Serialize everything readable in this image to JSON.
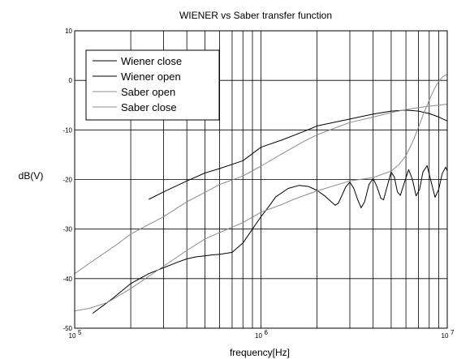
{
  "chart_data": {
    "type": "line",
    "title": "WIENER vs Saber transfer function",
    "xlabel": "frequency[Hz]",
    "ylabel": "dB(V)",
    "xscale": "log",
    "xlim": [
      100000,
      10000000
    ],
    "ylim": [
      -50,
      10
    ],
    "x_ticks": [
      {
        "value": 100000,
        "base": "10",
        "exp": "5"
      },
      {
        "value": 1000000,
        "base": "10",
        "exp": "6"
      },
      {
        "value": 10000000,
        "base": "10",
        "exp": "7"
      }
    ],
    "y_ticks": [
      10,
      0,
      -10,
      -20,
      -30,
      -40,
      -50
    ],
    "grid": true,
    "legend_position": "top-left",
    "series": [
      {
        "name": "Wiener close",
        "color": "#000000",
        "points": [
          [
            250000,
            -24
          ],
          [
            300000,
            -22.5
          ],
          [
            400000,
            -20.3
          ],
          [
            500000,
            -18.7
          ],
          [
            600000,
            -17.8
          ],
          [
            800000,
            -16.2
          ],
          [
            1000000,
            -13.5
          ],
          [
            1300000,
            -12
          ],
          [
            1700000,
            -10.3
          ],
          [
            2000000,
            -9.2
          ],
          [
            3000000,
            -7.8
          ],
          [
            4000000,
            -6.8
          ],
          [
            5000000,
            -6.2
          ],
          [
            6000000,
            -6
          ],
          [
            7000000,
            -6.2
          ],
          [
            8000000,
            -6.7
          ],
          [
            9000000,
            -7.4
          ],
          [
            10000000,
            -8.2
          ]
        ]
      },
      {
        "name": "Wiener open",
        "color": "#000000",
        "points": [
          [
            125000,
            -47
          ],
          [
            160000,
            -44
          ],
          [
            200000,
            -41
          ],
          [
            250000,
            -39
          ],
          [
            300000,
            -37.8
          ],
          [
            350000,
            -36.8
          ],
          [
            400000,
            -36
          ],
          [
            450000,
            -35.6
          ],
          [
            500000,
            -35.4
          ],
          [
            550000,
            -35.2
          ],
          [
            600000,
            -35.1
          ],
          [
            700000,
            -34.7
          ],
          [
            800000,
            -32.8
          ],
          [
            900000,
            -30
          ],
          [
            1000000,
            -27.5
          ],
          [
            1100000,
            -25.5
          ],
          [
            1200000,
            -23.5
          ],
          [
            1400000,
            -21.8
          ],
          [
            1600000,
            -21.2
          ],
          [
            1800000,
            -21.4
          ],
          [
            2000000,
            -22.2
          ],
          [
            2200000,
            -23.3
          ],
          [
            2400000,
            -24.6
          ],
          [
            2500000,
            -25.2
          ],
          [
            2600000,
            -24.8
          ],
          [
            2700000,
            -23.5
          ],
          [
            2850000,
            -21.5
          ],
          [
            3000000,
            -20.5
          ],
          [
            3150000,
            -21.8
          ],
          [
            3300000,
            -24
          ],
          [
            3450000,
            -25.7
          ],
          [
            3600000,
            -24.5
          ],
          [
            3800000,
            -21
          ],
          [
            4000000,
            -19.8
          ],
          [
            4200000,
            -21.5
          ],
          [
            4400000,
            -23.8
          ],
          [
            4550000,
            -24.1
          ],
          [
            4750000,
            -21.5
          ],
          [
            5000000,
            -18.5
          ],
          [
            5200000,
            -19.5
          ],
          [
            5400000,
            -22.5
          ],
          [
            5600000,
            -23.2
          ],
          [
            5900000,
            -20.5
          ],
          [
            6200000,
            -18
          ],
          [
            6500000,
            -20
          ],
          [
            6800000,
            -23.3
          ],
          [
            7100000,
            -22
          ],
          [
            7400000,
            -18.5
          ],
          [
            7800000,
            -17.2
          ],
          [
            8200000,
            -20.5
          ],
          [
            8600000,
            -23.6
          ],
          [
            9000000,
            -22
          ],
          [
            9400000,
            -18.8
          ],
          [
            9800000,
            -17.5
          ],
          [
            10000000,
            -18.3
          ]
        ]
      },
      {
        "name": "Saber open",
        "color": "#8c8c8c",
        "points": [
          [
            100000,
            -46.5
          ],
          [
            120000,
            -46
          ],
          [
            150000,
            -44.8
          ],
          [
            200000,
            -42
          ],
          [
            300000,
            -37.5
          ],
          [
            400000,
            -34.3
          ],
          [
            500000,
            -32
          ],
          [
            600000,
            -30.7
          ],
          [
            800000,
            -28.7
          ],
          [
            1000000,
            -26.6
          ],
          [
            1300000,
            -25
          ],
          [
            1500000,
            -24
          ],
          [
            2000000,
            -22.3
          ],
          [
            2500000,
            -21.2
          ],
          [
            3000000,
            -20.3
          ],
          [
            4000000,
            -19.6
          ],
          [
            5000000,
            -18.3
          ],
          [
            5500000,
            -17
          ],
          [
            6000000,
            -15.2
          ],
          [
            6500000,
            -12.5
          ],
          [
            7000000,
            -9.5
          ],
          [
            7500000,
            -6.5
          ],
          [
            8000000,
            -4
          ],
          [
            8500000,
            -1.8
          ],
          [
            9000000,
            -0.2
          ],
          [
            9500000,
            0.8
          ],
          [
            10000000,
            1.2
          ]
        ]
      },
      {
        "name": "Saber close",
        "color": "#8c8c8c",
        "points": [
          [
            100000,
            -39
          ],
          [
            130000,
            -36
          ],
          [
            170000,
            -33
          ],
          [
            200000,
            -31
          ],
          [
            300000,
            -27.5
          ],
          [
            400000,
            -24.5
          ],
          [
            500000,
            -22.6
          ],
          [
            600000,
            -21
          ],
          [
            800000,
            -19.3
          ],
          [
            1000000,
            -17.3
          ],
          [
            1300000,
            -14.8
          ],
          [
            1700000,
            -12.3
          ],
          [
            2000000,
            -11
          ],
          [
            2500000,
            -9.6
          ],
          [
            3000000,
            -8.5
          ],
          [
            4000000,
            -7.4
          ],
          [
            5000000,
            -6.5
          ],
          [
            6000000,
            -5.9
          ],
          [
            7000000,
            -5.5
          ],
          [
            8000000,
            -5.2
          ],
          [
            9000000,
            -5
          ],
          [
            10000000,
            -4.8
          ]
        ]
      }
    ]
  }
}
